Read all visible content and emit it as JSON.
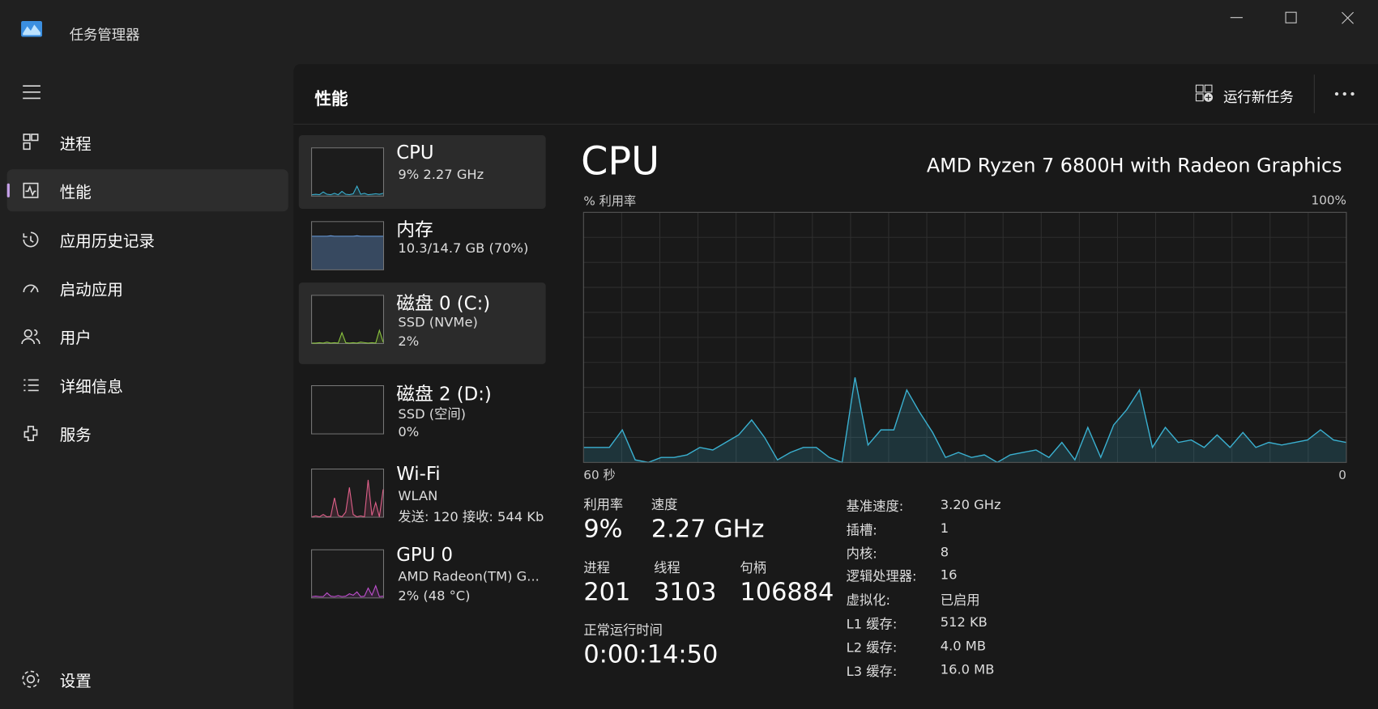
{
  "window": {
    "title": "任务管理器"
  },
  "nav": {
    "items": [
      "进程",
      "性能",
      "应用历史记录",
      "启动应用",
      "用户",
      "详细信息",
      "服务"
    ],
    "settings": "设置"
  },
  "header": {
    "title": "性能",
    "run_new_task": "运行新任务"
  },
  "devices": [
    {
      "name": "CPU",
      "lines": [
        "9%  2.27 GHz"
      ],
      "color": "#3ab0d0",
      "history": [
        2,
        3,
        2,
        8,
        3,
        2,
        5,
        2,
        9,
        3,
        2,
        4,
        20,
        3,
        5,
        2,
        3,
        4,
        3,
        5
      ]
    },
    {
      "name": "内存",
      "lines": [
        "10.3/14.7 GB (70%)"
      ],
      "color": "#6a9ee0",
      "history": [
        70,
        70,
        70,
        70,
        70,
        71,
        70,
        70,
        70,
        70,
        70,
        70,
        71,
        70,
        70,
        70,
        70,
        70,
        70,
        70
      ]
    },
    {
      "name": "磁盘 0 (C:)",
      "lines": [
        "SSD (NVMe)",
        "2%"
      ],
      "color": "#8cc63f",
      "history": [
        0,
        0,
        1,
        0,
        2,
        0,
        1,
        0,
        22,
        1,
        0,
        1,
        0,
        2,
        1,
        0,
        1,
        0,
        27,
        2
      ]
    },
    {
      "name": "磁盘 2 (D:)",
      "lines": [
        "SSD (空间)",
        "0%"
      ],
      "color": "#8cc63f",
      "history": []
    },
    {
      "name": "Wi-Fi",
      "lines": [
        "WLAN",
        "发送: 120 接收: 544 Kb"
      ],
      "color": "#e0608a",
      "history": [
        0,
        2,
        0,
        5,
        0,
        1,
        40,
        3,
        0,
        10,
        62,
        5,
        0,
        2,
        0,
        78,
        3,
        30,
        0,
        58
      ]
    },
    {
      "name": "GPU 0",
      "lines": [
        "AMD Radeon(TM) G...",
        "2% (48 °C)"
      ],
      "color": "#c050d0",
      "history": [
        2,
        3,
        2,
        2,
        10,
        3,
        2,
        4,
        2,
        3,
        8,
        5,
        12,
        2,
        3,
        20,
        5,
        25,
        2,
        3
      ]
    }
  ],
  "detail": {
    "title": "CPU",
    "model": "AMD Ryzen 7 6800H with Radeon Graphics",
    "y_label": "% 利用率",
    "chart": {
      "type": "area",
      "color": "#3ab0d0",
      "ylim": [
        0,
        100
      ],
      "yticks": [
        {
          "value": 100,
          "label": "100%"
        }
      ],
      "xlim": [
        60,
        0
      ],
      "xticks": [
        {
          "value": 60,
          "label": "60 秒"
        },
        0
      ],
      "values": [
        6,
        6,
        6,
        13,
        1,
        0,
        2,
        2,
        3,
        6,
        5,
        8,
        11,
        17,
        10,
        1,
        4,
        6,
        6,
        2,
        0,
        34,
        7,
        13,
        13,
        29,
        20,
        12,
        2,
        4,
        2,
        3,
        0,
        3,
        4,
        5,
        2,
        8,
        1,
        14,
        2,
        15,
        21,
        29,
        6,
        14,
        8,
        9,
        6,
        11,
        6,
        12,
        6,
        8,
        7,
        8,
        9,
        13,
        9,
        8
      ]
    },
    "stats": [
      [
        "利用率",
        "9%"
      ],
      [
        "速度",
        "2.27 GHz"
      ],
      [
        "进程",
        "201"
      ],
      [
        "线程",
        "3103"
      ],
      [
        "句柄",
        "106884"
      ],
      [
        "正常运行时间",
        "0:00:14:50"
      ]
    ],
    "specs": [
      [
        "基准速度:",
        "3.20 GHz"
      ],
      [
        "插槽:",
        "1"
      ],
      [
        "内核:",
        "8"
      ],
      [
        "逻辑处理器:",
        "16"
      ],
      [
        "虚拟化:",
        "已启用"
      ],
      [
        "L1 缓存:",
        "512 KB"
      ],
      [
        "L2 缓存:",
        "4.0 MB"
      ],
      [
        "L3 缓存:",
        "16.0 MB"
      ]
    ]
  }
}
